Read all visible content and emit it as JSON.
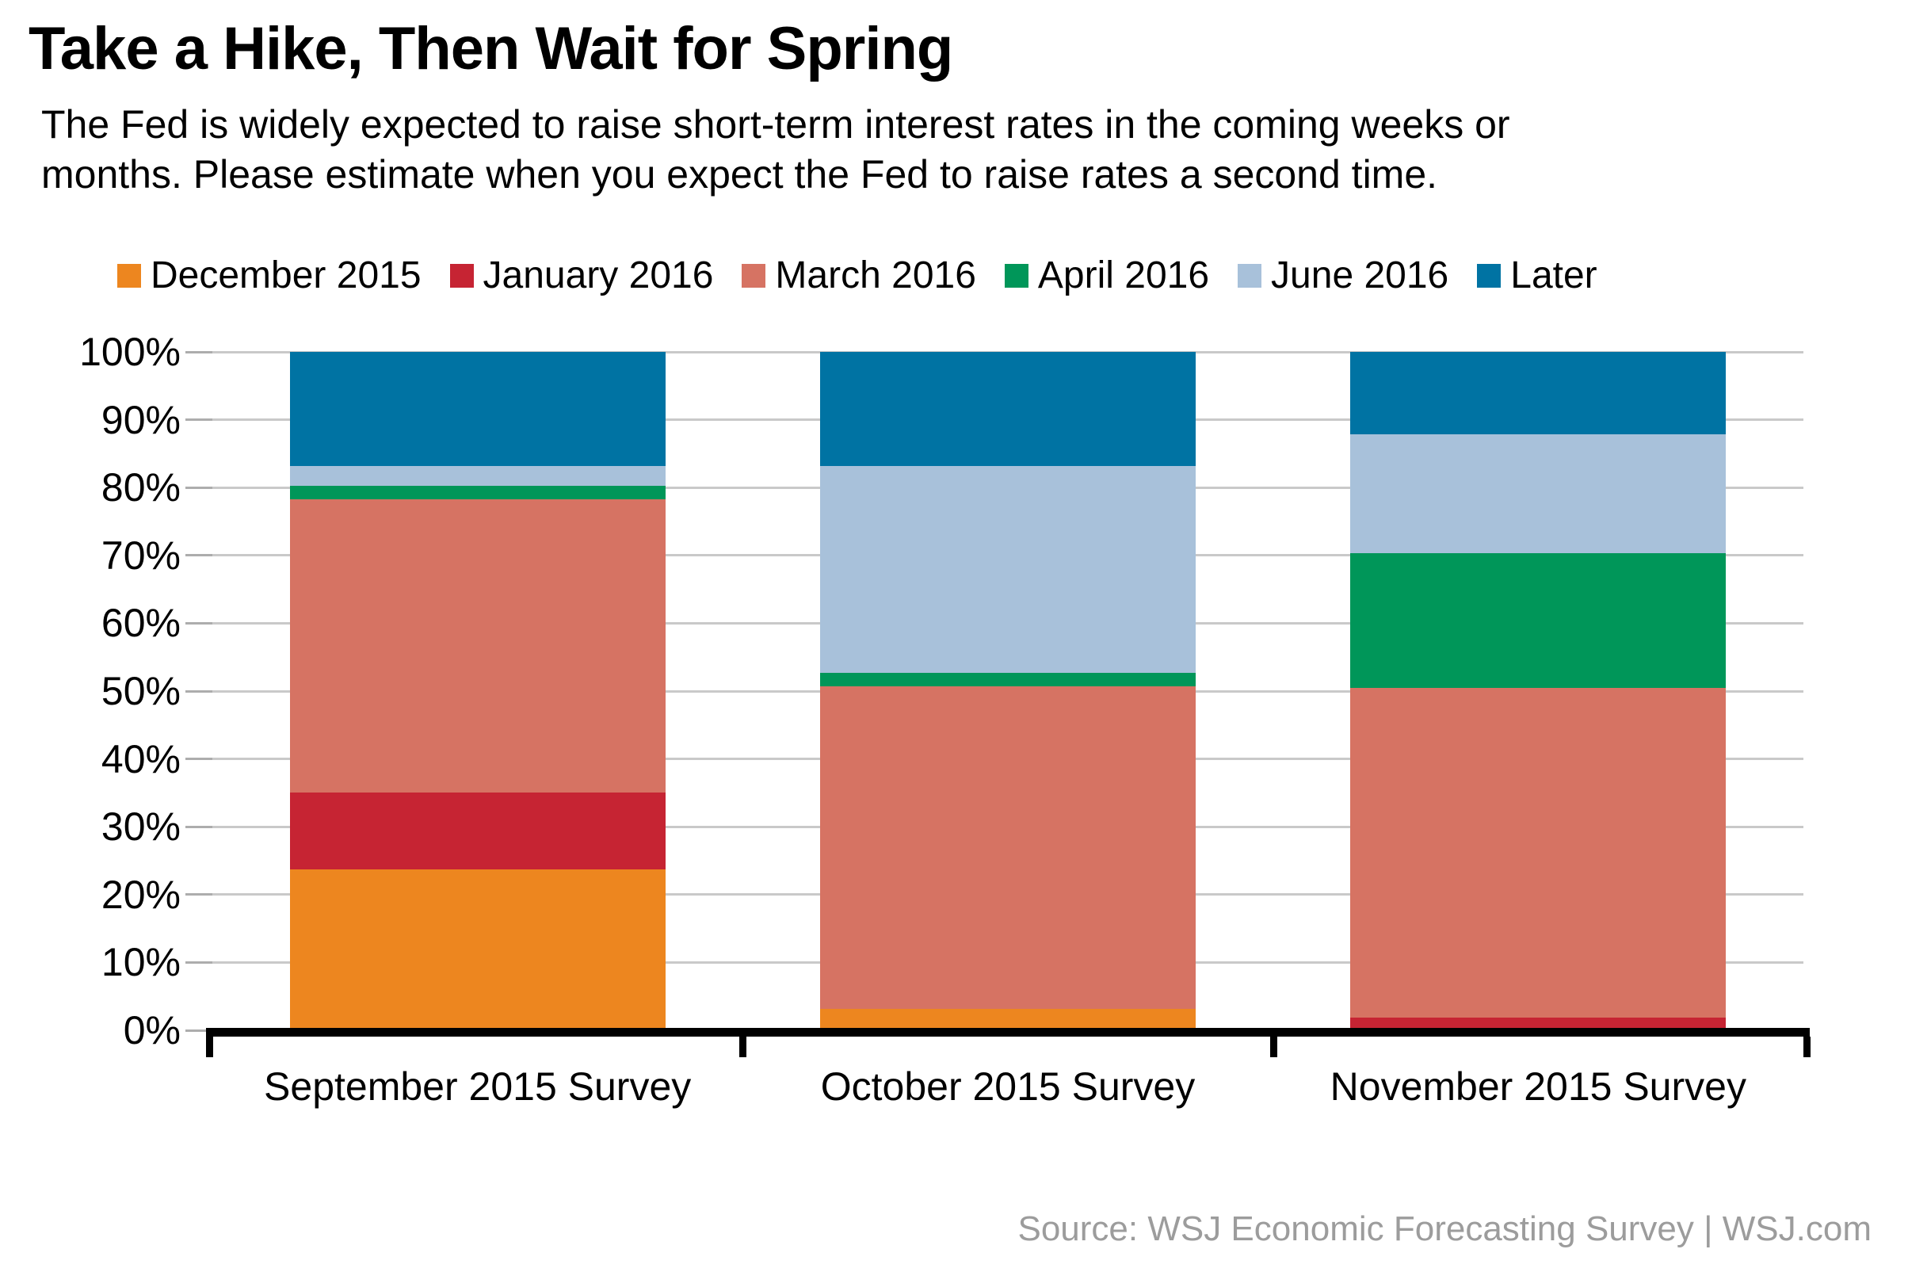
{
  "header": {
    "title": "Take a Hike, Then Wait for Spring",
    "subtitle_lines": [
      "The Fed is widely expected to raise short-term interest rates in the coming weeks or",
      "months. Please estimate when you expect the Fed to raise rates a second time."
    ]
  },
  "footer": {
    "source": "Source: WSJ Economic Forecasting Survey  |  WSJ.com"
  },
  "colors": {
    "gridline": "#C9C9C9",
    "tick_stub": "#ADADAD",
    "axis": "#000000",
    "source_text": "#9C9C9C",
    "background": "#FFFFFF"
  },
  "chart_data": {
    "type": "bar",
    "stacked": true,
    "unit": "percent",
    "title": "Take a Hike, Then Wait for Spring",
    "xlabel": "",
    "ylabel": "",
    "ylim": [
      0,
      100
    ],
    "grid": true,
    "legend_position": "top",
    "y_ticks": [
      "0%",
      "10%",
      "20%",
      "30%",
      "40%",
      "50%",
      "60%",
      "70%",
      "80%",
      "90%",
      "100%"
    ],
    "categories": [
      "September 2015 Survey",
      "October 2015 Survey",
      "November 2015 Survey"
    ],
    "series": [
      {
        "name": "December 2015",
        "color": "#ED861F",
        "values": [
          23.7,
          3.2,
          0
        ]
      },
      {
        "name": "January 2016",
        "color": "#C62433",
        "values": [
          11.3,
          0,
          1.9
        ]
      },
      {
        "name": "March 2016",
        "color": "#D67363",
        "values": [
          43.3,
          47.5,
          48.6
        ]
      },
      {
        "name": "April 2016",
        "color": "#009659",
        "values": [
          1.9,
          2.0,
          19.8
        ]
      },
      {
        "name": "June 2016",
        "color": "#A8C1DA",
        "values": [
          3.0,
          30.5,
          17.5
        ]
      },
      {
        "name": "Later",
        "color": "#0073A3",
        "values": [
          16.8,
          16.8,
          12.2
        ]
      }
    ]
  }
}
